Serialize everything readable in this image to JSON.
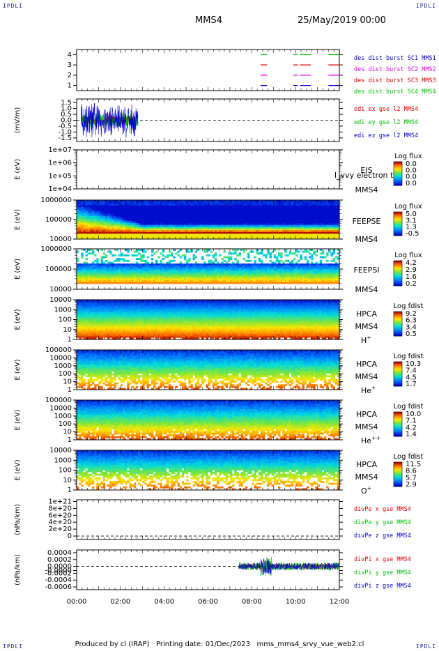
{
  "header": {
    "corner_tl": "IPDLI",
    "corner_tr": "IPDLI",
    "corner_bl": "IPDLI",
    "corner_br": "IPDLI",
    "title": "MMS4",
    "date": "25/May/2019 00:00"
  },
  "footer": {
    "producer": "Produced by cl (IRAP)",
    "printing": "Printing date: 01/Dec/2023",
    "file": "mms_mms4_srvy_vue_web2.cl"
  },
  "colors": {
    "red": "#e00000",
    "green": "#00c000",
    "blue": "#0000c8",
    "magenta": "#e000e0",
    "black": "#000000"
  },
  "chart_data": {
    "type": "stacked-timeseries",
    "x_ticks": [
      "00:00",
      "02:00",
      "04:00",
      "06:00",
      "08:00",
      "10:00",
      "12:00"
    ],
    "x_range_hours": [
      0,
      12
    ],
    "panels": [
      {
        "id": "burst",
        "type": "line",
        "ylabel": "",
        "yticks": [
          "4",
          "3",
          "2",
          "1"
        ],
        "ylim": [
          0.5,
          4.5
        ],
        "legend": [
          {
            "label": "des dist burst SC1 MMS1",
            "color": "#0000c8"
          },
          {
            "label": "des dist burst SC2 MMS2",
            "color": "#e000e0"
          },
          {
            "label": "des dist burst SC3 MMS3",
            "color": "#e00000"
          },
          {
            "label": "des dist burst SC4 MMS4",
            "color": "#00c000"
          }
        ],
        "series": [
          {
            "level": 4,
            "color": "#00c000",
            "intervals_h": [
              [
                8.4,
                8.7
              ],
              [
                9.9,
                10.1
              ],
              [
                10.2,
                10.7
              ],
              [
                11.5,
                12.0
              ]
            ]
          },
          {
            "level": 3,
            "color": "#e00000",
            "intervals_h": [
              [
                8.4,
                8.7
              ],
              [
                9.9,
                10.1
              ],
              [
                10.2,
                10.7
              ],
              [
                11.5,
                12.0
              ]
            ]
          },
          {
            "level": 2,
            "color": "#e000e0",
            "intervals_h": [
              [
                8.4,
                8.7
              ],
              [
                9.9,
                10.1
              ],
              [
                10.2,
                10.7
              ],
              [
                11.5,
                12.0
              ]
            ]
          },
          {
            "level": 1,
            "color": "#0000c8",
            "intervals_h": [
              [
                8.4,
                8.7
              ],
              [
                9.9,
                10.1
              ],
              [
                10.2,
                10.7
              ],
              [
                11.5,
                12.0
              ]
            ]
          }
        ]
      },
      {
        "id": "edi",
        "type": "line",
        "ylabel": "(mV/m)",
        "yticks": [
          "1.5",
          "1.0",
          "0.5",
          "0.0",
          "-0.5",
          "-1.0",
          "-1.5"
        ],
        "ylim": [
          -1.8,
          1.8
        ],
        "legend": [
          {
            "label": "edi ex gse l2 MMS4",
            "color": "#e00000"
          },
          {
            "label": "edi ey gse l2 MMS4",
            "color": "#00c000"
          },
          {
            "label": "edi ez gse l2 MMS4",
            "color": "#0000c8"
          }
        ],
        "data_interval_h": [
          0.2,
          2.8
        ],
        "amplitude": {
          "ex": 0.4,
          "ey": 0.6,
          "ez": 1.4
        }
      },
      {
        "id": "eis",
        "type": "heatmap",
        "ylabel": "E (eV)",
        "yticks": [
          "1e+07",
          "1e+06",
          "1e+05",
          "1e+04"
        ],
        "labels": [
          "EIS",
          "MMS4"
        ],
        "overlay_text": "l_vvy electron to",
        "colorbar": {
          "title": "Log flux",
          "ticks": [
            "0.0",
            "0.0",
            "0.0",
            "0.0"
          ]
        }
      },
      {
        "id": "feepse",
        "type": "heatmap",
        "ylabel": "E (eV)",
        "yticks": [
          "1000000",
          "100000",
          "10000"
        ],
        "labels": [
          "FEEPSE",
          "MMS4"
        ],
        "colorbar": {
          "title": "Log flux",
          "ticks": [
            "5.0",
            "3.1",
            "1.3",
            "-0.5"
          ]
        }
      },
      {
        "id": "feepsi",
        "type": "heatmap",
        "ylabel": "E (eV)",
        "yticks": [
          "1000000",
          "100000",
          "10000"
        ],
        "labels": [
          "FEEPSI",
          "MMS4"
        ],
        "colorbar": {
          "title": "Log flux",
          "ticks": [
            "4.2",
            "2.9",
            "1.6",
            "0.2"
          ]
        }
      },
      {
        "id": "hpca_h",
        "type": "heatmap",
        "ylabel": "E (eV)",
        "yticks": [
          "10000",
          "1000",
          "100",
          "10",
          "1"
        ],
        "labels": [
          "HPCA",
          "MMS4",
          "H+"
        ],
        "colorbar": {
          "title": "Log fdist",
          "ticks": [
            "9.2",
            "6.3",
            "3.4",
            "0.5"
          ]
        }
      },
      {
        "id": "hpca_he",
        "type": "heatmap",
        "ylabel": "E (eV)",
        "yticks": [
          "100000",
          "10000",
          "1000",
          "100",
          "10",
          "1"
        ],
        "labels": [
          "HPCA",
          "MMS4",
          "He+"
        ],
        "colorbar": {
          "title": "Log fdist",
          "ticks": [
            "10.3",
            "7.4",
            "4.5",
            "1.7"
          ]
        }
      },
      {
        "id": "hpca_hepp",
        "type": "heatmap",
        "ylabel": "E (eV)",
        "yticks": [
          "100000",
          "10000",
          "1000",
          "100",
          "10",
          "1"
        ],
        "labels": [
          "HPCA",
          "MMS4",
          "He++"
        ],
        "colorbar": {
          "title": "Log fdist",
          "ticks": [
            "10.0",
            "7.1",
            "4.2",
            "1.4"
          ]
        }
      },
      {
        "id": "hpca_o",
        "type": "heatmap",
        "ylabel": "E (eV)",
        "yticks": [
          "10000",
          "1000",
          "100",
          "10",
          "1"
        ],
        "labels": [
          "HPCA",
          "MMS4",
          "O+"
        ],
        "colorbar": {
          "title": "Log fdist",
          "ticks": [
            "11.5",
            "8.6",
            "5.7",
            "2.9"
          ]
        }
      },
      {
        "id": "divpe",
        "type": "line",
        "ylabel": "(nPa/km)",
        "yticks": [
          "1e+21",
          "8e+20",
          "6e+20",
          "4e+20",
          "2e+20",
          "0"
        ],
        "ylim": [
          -1e+20,
          1.05e+21
        ],
        "legend": [
          {
            "label": "divPe x gse MMS4",
            "color": "#e00000"
          },
          {
            "label": "divPe y gse MMS4",
            "color": "#00c000"
          },
          {
            "label": "divPe z gse MMS4",
            "color": "#0000c8"
          }
        ]
      },
      {
        "id": "divpi",
        "type": "line",
        "ylabel": "(nPa/km)",
        "yticks": [
          "0.0004",
          "0.0002",
          "0.0000",
          "-0.0000",
          "-0.0002",
          "-0.0004",
          "-0.0006"
        ],
        "ylim": [
          -0.00068,
          0.00048
        ],
        "legend": [
          {
            "label": "divPi x gse MMS4",
            "color": "#e00000"
          },
          {
            "label": "divPi y gse MMS4",
            "color": "#00c000"
          },
          {
            "label": "divPi z gse MMS4",
            "color": "#0000c8"
          }
        ],
        "data_interval_h": [
          7.4,
          12.0
        ]
      }
    ]
  }
}
